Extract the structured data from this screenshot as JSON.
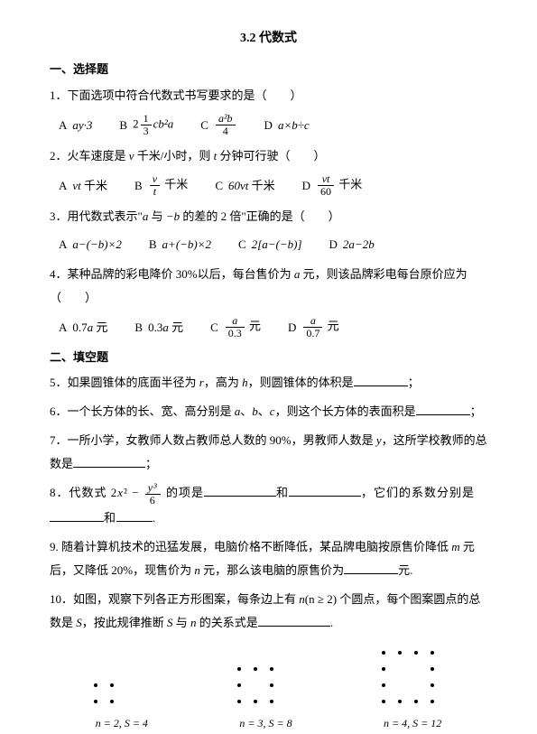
{
  "title": "3.2  代数式",
  "section1_header": "一、选择题",
  "q1": {
    "text": "1．下面选项中符合代数式书写要求的是（　　）",
    "optA_label": "A",
    "optB_label": "B",
    "optC_label": "C",
    "optD_label": "D",
    "optA_expr": "ay·3",
    "optB_prefix": "2",
    "optB_frac_num": "1",
    "optB_frac_den": "3",
    "optB_suffix": "cb²a",
    "optC_frac_num": "a²b",
    "optC_frac_den": "4",
    "optD_expr": "a×b÷c"
  },
  "q2": {
    "text_prefix": "2．火车速度是 ",
    "text_var1": "v",
    "text_mid": " 千米/小时，则 ",
    "text_var2": "t",
    "text_suffix": " 分钟可行驶（　　）",
    "optA_label": "A",
    "optB_label": "B",
    "optC_label": "C",
    "optD_label": "D",
    "optA_expr": "vt",
    "optA_unit": " 千米",
    "optB_frac_num": "v",
    "optB_frac_den": "t",
    "optB_unit": " 千米",
    "optC_expr": "60vt 千米",
    "optD_frac_num": "vt",
    "optD_frac_den": "60",
    "optD_unit": " 千米"
  },
  "q3": {
    "text_prefix": "3．用代数式表示\"",
    "text_var1": "a",
    "text_mid1": " 与 ",
    "text_var2": "−b",
    "text_suffix": " 的差的 2 倍\"正确的是（　　）",
    "optA_label": "A",
    "optB_label": "B",
    "optC_label": "C",
    "optD_label": "D",
    "optA_expr": "a−(−b)×2",
    "optB_expr": "a+(−b)×2",
    "optC_expr": "2[a−(−b)]",
    "optD_expr": "2a−2b"
  },
  "q4": {
    "text_prefix": "4．某种品牌的彩电降价 30%以后，每台售价为 ",
    "text_var": "a",
    "text_suffix": " 元，则该品牌彩电每台原价应为（　　）",
    "optA_label": "A",
    "optB_label": "B",
    "optC_label": "C",
    "optD_label": "D",
    "optA_expr": "0.7a 元",
    "optB_expr": "0.3a 元",
    "optC_frac_num": "a",
    "optC_frac_den": "0.3",
    "optC_unit": " 元",
    "optD_frac_num": "a",
    "optD_frac_den": "0.7",
    "optD_unit": " 元"
  },
  "section2_header": "二、填空题",
  "q5": {
    "prefix": "5．如果圆锥体的底面半径为 ",
    "var1": "r",
    "mid": "，高为 ",
    "var2": "h",
    "suffix": "，则圆锥体的体积是",
    "end": "；"
  },
  "q6": {
    "prefix": "6．一个长方体的长、宽、高分别是 ",
    "var1": "a",
    "sep1": "、",
    "var2": "b",
    "sep2": "、",
    "var3": "c",
    "suffix": "，则这个长方体的表面积是",
    "end": "；"
  },
  "q7": {
    "prefix": "7．一所小学，女教师人数占教师总人数的 90%，男教师人数是 ",
    "var": "y",
    "suffix": "，这所学校教师的总数是",
    "end": "；"
  },
  "q8": {
    "prefix": "8．代数式 2",
    "x2": "x² − ",
    "frac_num": "y³",
    "frac_den": "6",
    "mid1": " 的项是",
    "and": "和",
    "mid2": "，它们的系数分别是",
    "and2": "和",
    "end": "."
  },
  "q9": {
    "prefix": "9. 随着计算机技术的迅猛发展，电脑价格不断降低，某品牌电脑按原售价降低 ",
    "var1": "m",
    "mid": " 元后，又降低 20%，现售价为 ",
    "var2": "n",
    "suffix": " 元，那么该电脑的原售价为",
    "unit": "元."
  },
  "q10": {
    "prefix": "10．如图，观察下列各正方形图案，每条边上有 ",
    "var1": "n",
    "paren": "(n ≥ 2)",
    "mid": " 个圆点，每个图案圆点的总数是 ",
    "var2": "S",
    "mid2": "，按此规律推断 ",
    "var3": "S",
    "and": " 与 ",
    "var4": "n",
    "suffix": " 的关系式是",
    "end": "."
  },
  "figures": {
    "fig1": {
      "n": 2,
      "S": 4,
      "caption": "n = 2, S = 4"
    },
    "fig2": {
      "n": 3,
      "S": 8,
      "caption": "n = 3, S = 8"
    },
    "fig3": {
      "n": 4,
      "S": 12,
      "caption": "n = 4, S = 12"
    },
    "dot_color": "#000000",
    "dot_size": 4,
    "spacing": 18
  }
}
